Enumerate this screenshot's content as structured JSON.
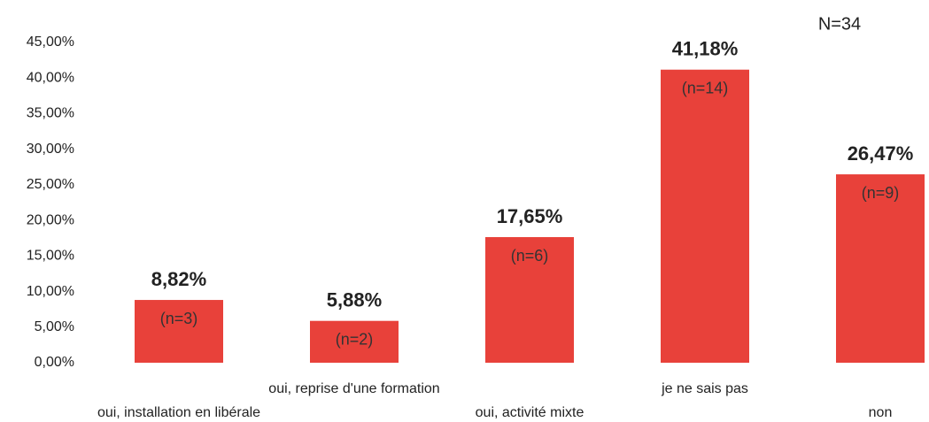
{
  "chart_data": {
    "type": "bar",
    "annotation": "N=34",
    "categories": [
      "oui, installation en libérale",
      "oui, reprise d'une formation",
      "oui, activité mixte",
      "je ne sais pas",
      "non"
    ],
    "values": [
      8.82,
      5.88,
      17.65,
      41.18,
      26.47
    ],
    "value_labels": [
      "8,82%",
      "5,88%",
      "17,65%",
      "41,18%",
      "26,47%"
    ],
    "count_labels": [
      "(n=3)",
      "(n=2)",
      "(n=6)",
      "(n=14)",
      "(n=9)"
    ],
    "color": "#e8413a",
    "ylim": [
      0,
      45
    ],
    "yticks": [
      {
        "value": 0,
        "label": "0,00%"
      },
      {
        "value": 5,
        "label": "5,00%"
      },
      {
        "value": 10,
        "label": "10,00%"
      },
      {
        "value": 15,
        "label": "15,00%"
      },
      {
        "value": 20,
        "label": "20,00%"
      },
      {
        "value": 25,
        "label": "25,00%"
      },
      {
        "value": 30,
        "label": "30,00%"
      },
      {
        "value": 35,
        "label": "35,00%"
      },
      {
        "value": 40,
        "label": "40,00%"
      },
      {
        "value": 45,
        "label": "45,00%"
      }
    ],
    "grid": false
  }
}
